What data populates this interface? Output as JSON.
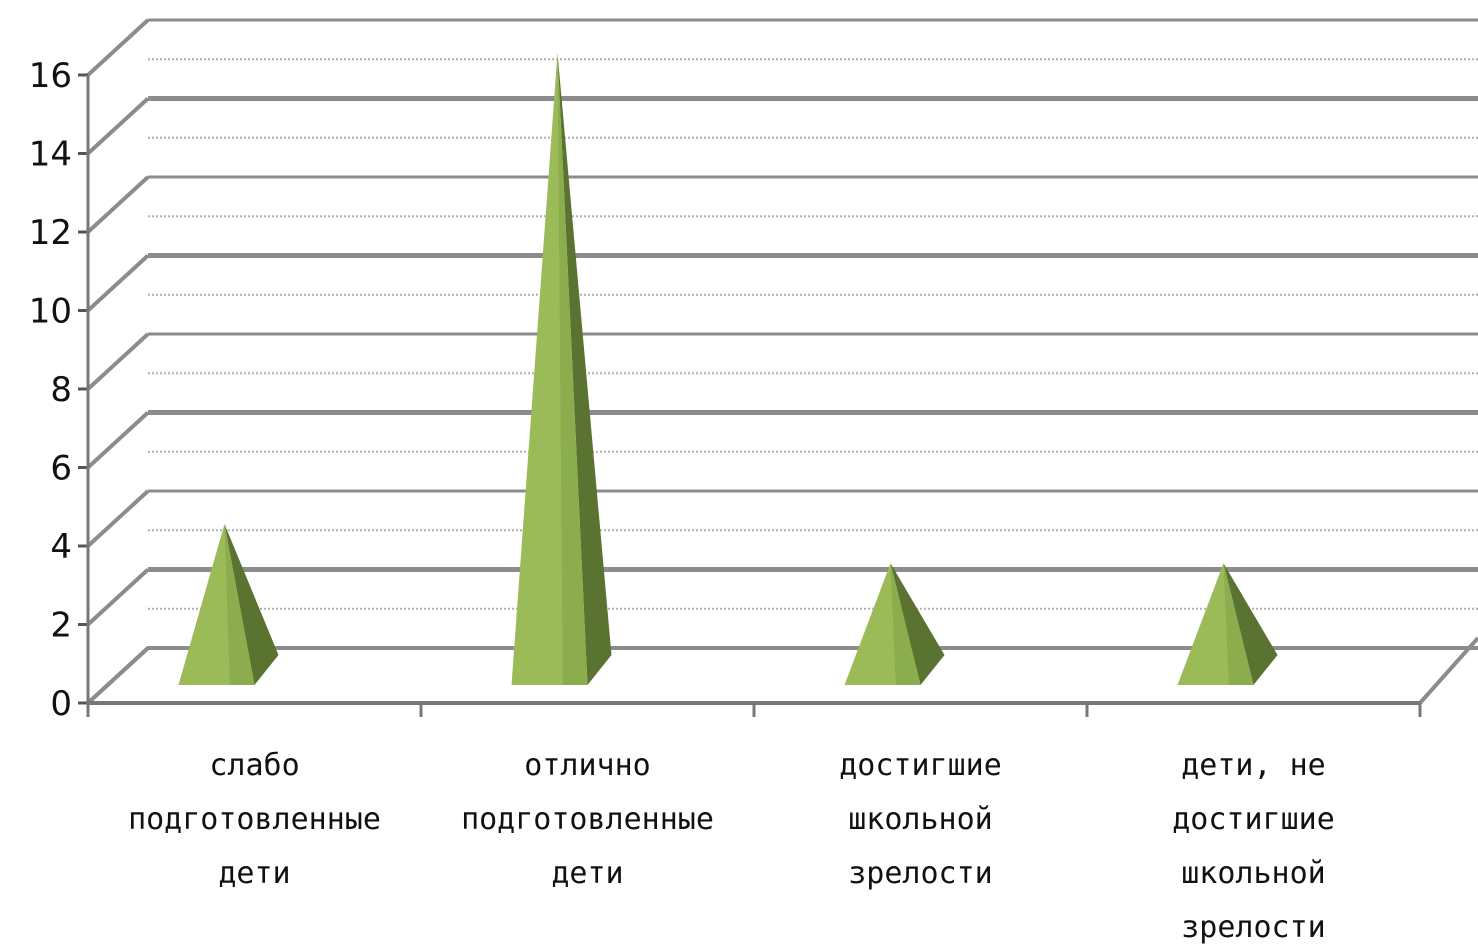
{
  "chart_data": {
    "type": "bar",
    "style": "3d-pyramid",
    "categories": [
      [
        "слабо",
        "подготовленные",
        "дети"
      ],
      [
        "отлично",
        "подготовленные",
        "дети"
      ],
      [
        "достигшие",
        "школьной",
        "зрелости"
      ],
      [
        "дети, не",
        "достигшие",
        "школьной",
        "зрелости"
      ]
    ],
    "values": [
      4,
      16,
      3,
      3
    ],
    "ylim": [
      0,
      16
    ],
    "yticks": [
      "0",
      "2",
      "4",
      "6",
      "8",
      "10",
      "12",
      "14",
      "16"
    ],
    "grid": true,
    "legend": "none",
    "colors": {
      "face_light": "#9bbb59",
      "face_mid": "#86a64a",
      "face_dark": "#5a7330",
      "grid": "#8c8c8c"
    }
  }
}
